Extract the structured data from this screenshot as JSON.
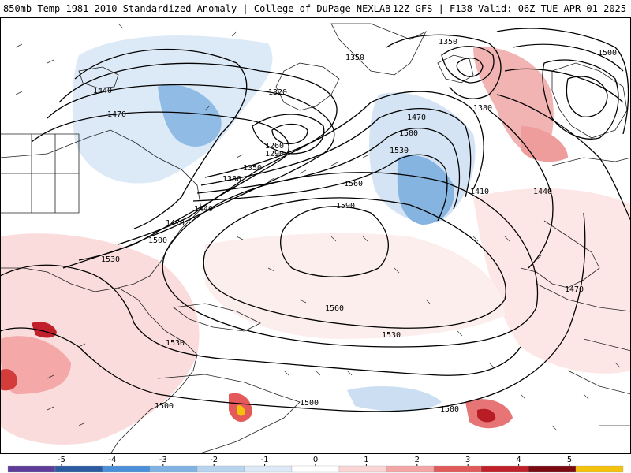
{
  "header": {
    "title_left": "850mb Temp 1981-2010 Standardized Anomaly | College of DuPage NEXLAB",
    "title_right": "12Z GFS | F138 Valid: 06Z TUE APR 01 2025"
  },
  "contour_labels": [
    "1350",
    "1350",
    "1500",
    "1440",
    "1470",
    "1320",
    "1260",
    "1290",
    "1380",
    "1350",
    "1380",
    "1470",
    "1500",
    "1530",
    "1560",
    "1590",
    "1410",
    "1440",
    "1440",
    "1470",
    "1500",
    "1530",
    "1560",
    "1530",
    "1530",
    "1470",
    "1500",
    "1500",
    "1500"
  ],
  "colorbar": {
    "ticks": [
      "-5",
      "-4",
      "-3",
      "-2",
      "-1",
      "0",
      "1",
      "2",
      "3",
      "4",
      "5"
    ],
    "colors": [
      "#5e3c99",
      "#2c5aa0",
      "#4a90d9",
      "#7fb3e3",
      "#b7d3ee",
      "#dde9f6",
      "#ffffff",
      "#fbd4d4",
      "#f4a6a6",
      "#e05a5a",
      "#c0202a",
      "#7a0a12",
      "#f4c20d"
    ]
  }
}
